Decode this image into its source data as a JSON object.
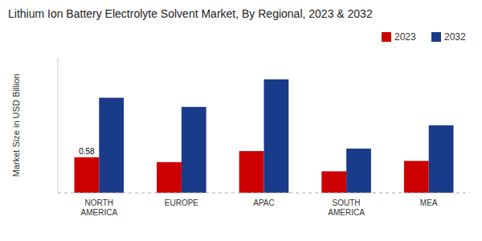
{
  "chart_data": {
    "type": "bar",
    "title": "Lithium Ion Battery Electrolyte Solvent Market, By Regional, 2023 & 2032",
    "y_label": "Market Size in USD Billion",
    "categories": [
      "NORTH\nAMERICA",
      "EUROPE",
      "APAC",
      "SOUTH\nAMERICA",
      "MEA"
    ],
    "series": [
      {
        "name": "2023",
        "color": "#cc0000",
        "values": [
          0.58,
          0.5,
          0.68,
          0.35,
          0.52
        ]
      },
      {
        "name": "2032",
        "color": "#1a3a8a",
        "values": [
          1.55,
          1.4,
          1.85,
          0.72,
          1.1
        ]
      }
    ],
    "annotations": [
      {
        "text": "0.58",
        "x": "NORTH\nAMERICA",
        "y": 0.58
      }
    ],
    "ylim": [
      0,
      2.2
    ],
    "grid": false,
    "legend": "upper right",
    "tick_labels": "x"
  }
}
